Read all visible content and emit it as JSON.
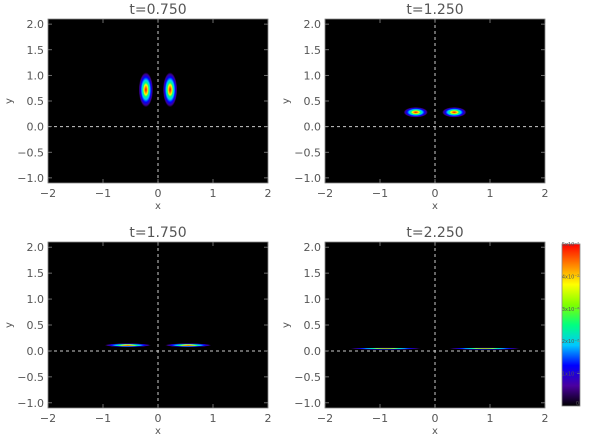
{
  "chart_data": [
    {
      "type": "heatmap",
      "title": "t=0.750",
      "xlabel": "x",
      "ylabel": "y",
      "xlim": [
        -2,
        2
      ],
      "ylim": [
        -1.1,
        2.1
      ],
      "xticks": [
        -2,
        -1,
        0,
        1,
        2
      ],
      "yticks": [
        -1.0,
        -0.5,
        0.0,
        0.5,
        1.0,
        1.5,
        2.0
      ],
      "reference_lines": {
        "x": 0,
        "y": 0
      },
      "blobs": [
        {
          "cx": -0.22,
          "cy": 0.72,
          "rx": 0.13,
          "ry": 0.34
        },
        {
          "cx": 0.22,
          "cy": 0.72,
          "rx": 0.13,
          "ry": 0.34
        }
      ]
    },
    {
      "type": "heatmap",
      "title": "t=1.250",
      "xlabel": "x",
      "ylabel": "y",
      "xlim": [
        -2,
        2
      ],
      "ylim": [
        -1.1,
        2.1
      ],
      "xticks": [
        -2,
        -1,
        0,
        1,
        2
      ],
      "yticks": [
        -1.0,
        -0.5,
        0.0,
        0.5,
        1.0,
        1.5,
        2.0
      ],
      "reference_lines": {
        "x": 0,
        "y": 0
      },
      "blobs": [
        {
          "cx": -0.35,
          "cy": 0.28,
          "rx": 0.22,
          "ry": 0.1
        },
        {
          "cx": 0.35,
          "cy": 0.28,
          "rx": 0.22,
          "ry": 0.1
        }
      ]
    },
    {
      "type": "heatmap",
      "title": "t=1.750",
      "xlabel": "x",
      "ylabel": "y",
      "xlim": [
        -2,
        2
      ],
      "ylim": [
        -1.1,
        2.1
      ],
      "xticks": [
        -2,
        -1,
        0,
        1,
        2
      ],
      "yticks": [
        -1.0,
        -0.5,
        0.0,
        0.5,
        1.0,
        1.5,
        2.0
      ],
      "reference_lines": {
        "x": 0,
        "y": 0
      },
      "blobs": [
        {
          "cx": -0.55,
          "cy": 0.11,
          "rx": 0.42,
          "ry": 0.035
        },
        {
          "cx": 0.55,
          "cy": 0.11,
          "rx": 0.42,
          "ry": 0.035
        }
      ]
    },
    {
      "type": "heatmap",
      "title": "t=2.250",
      "xlabel": "x",
      "ylabel": "y",
      "xlim": [
        -2,
        2
      ],
      "ylim": [
        -1.1,
        2.1
      ],
      "xticks": [
        -2,
        -1,
        0,
        1,
        2
      ],
      "yticks": [
        -1.0,
        -0.5,
        0.0,
        0.5,
        1.0,
        1.5,
        2.0
      ],
      "reference_lines": {
        "x": 0,
        "y": 0
      },
      "blobs": [
        {
          "cx": -0.9,
          "cy": 0.045,
          "rx": 0.65,
          "ry": 0.018
        },
        {
          "cx": 0.9,
          "cy": 0.045,
          "rx": 0.65,
          "ry": 0.018
        }
      ]
    }
  ],
  "colorbar": {
    "min": 0,
    "max": 5e-07,
    "labels": [
      "0",
      "1x10⁻⁷",
      "2x10⁻⁷",
      "3x10⁻⁷",
      "4x10⁻⁷",
      "5x10⁻⁷"
    ],
    "colormap": [
      "#000000",
      "#4b00a0",
      "#0000ff",
      "#00c8ff",
      "#00ff80",
      "#80ff00",
      "#ffff00",
      "#ff8000",
      "#ff0000"
    ]
  },
  "colors": {
    "plot_background": "#000000",
    "reference_line": "#cccccc",
    "axis_text": "#555555"
  }
}
